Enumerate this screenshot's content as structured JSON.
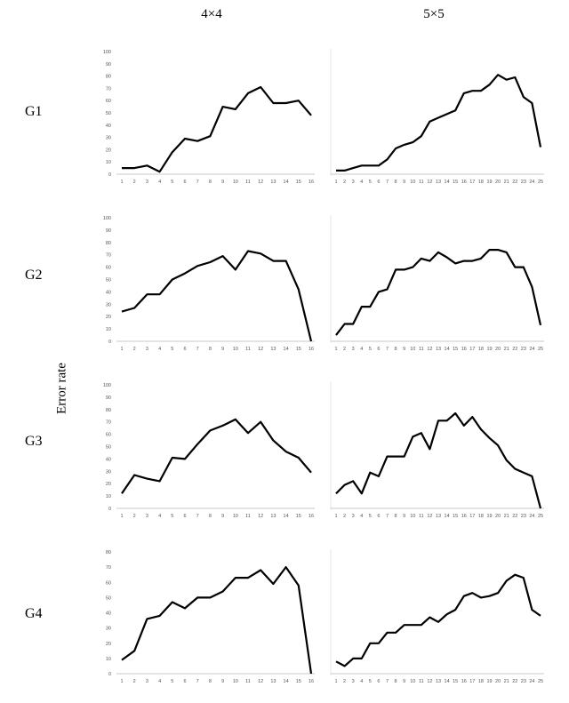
{
  "column_headers": [
    "4×4",
    "5×5"
  ],
  "row_labels": [
    "G1",
    "G2",
    "G3",
    "G4"
  ],
  "y_axis_title": "Error rate",
  "chart_data": [
    {
      "type": "line",
      "row": "G1",
      "column": "4×4",
      "ylim": [
        0,
        100
      ],
      "yticks": [
        0,
        10,
        20,
        30,
        40,
        50,
        60,
        70,
        80,
        90,
        100
      ],
      "x": [
        1,
        2,
        3,
        4,
        5,
        6,
        7,
        8,
        9,
        10,
        11,
        12,
        13,
        14,
        15,
        16
      ],
      "values": [
        5,
        5,
        7,
        2,
        18,
        29,
        27,
        31,
        55,
        53,
        66,
        71,
        58,
        58,
        60,
        48
      ]
    },
    {
      "type": "line",
      "row": "G1",
      "column": "5×5",
      "ylim": [
        0,
        100
      ],
      "yticks": [],
      "x": [
        1,
        2,
        3,
        4,
        5,
        6,
        7,
        8,
        9,
        10,
        11,
        12,
        13,
        14,
        15,
        16,
        17,
        18,
        19,
        20,
        21,
        22,
        23,
        24,
        25
      ],
      "values": [
        3,
        3,
        5,
        7,
        7,
        7,
        12,
        21,
        24,
        26,
        31,
        43,
        46,
        49,
        52,
        66,
        68,
        68,
        73,
        81,
        77,
        79,
        63,
        58,
        22
      ]
    },
    {
      "type": "line",
      "row": "G2",
      "column": "4×4",
      "ylim": [
        0,
        100
      ],
      "yticks": [
        0,
        10,
        20,
        30,
        40,
        50,
        60,
        70,
        80,
        90,
        100
      ],
      "x": [
        1,
        2,
        3,
        4,
        5,
        6,
        7,
        8,
        9,
        10,
        11,
        12,
        13,
        14,
        15,
        16
      ],
      "values": [
        24,
        27,
        38,
        38,
        50,
        55,
        61,
        64,
        69,
        58,
        73,
        71,
        65,
        65,
        42,
        0
      ]
    },
    {
      "type": "line",
      "row": "G2",
      "column": "5×5",
      "ylim": [
        0,
        100
      ],
      "yticks": [],
      "x": [
        1,
        2,
        3,
        4,
        5,
        6,
        7,
        8,
        9,
        10,
        11,
        12,
        13,
        14,
        15,
        16,
        17,
        18,
        19,
        20,
        21,
        22,
        23,
        24,
        25
      ],
      "values": [
        5,
        14,
        14,
        28,
        28,
        40,
        42,
        58,
        58,
        60,
        67,
        65,
        72,
        68,
        63,
        65,
        65,
        67,
        74,
        74,
        72,
        60,
        60,
        44,
        13
      ]
    },
    {
      "type": "line",
      "row": "G3",
      "column": "4×4",
      "ylim": [
        0,
        100
      ],
      "yticks": [
        0,
        10,
        20,
        30,
        40,
        50,
        60,
        70,
        80,
        90,
        100
      ],
      "x": [
        1,
        2,
        3,
        4,
        5,
        6,
        7,
        8,
        9,
        10,
        11,
        12,
        13,
        14,
        15,
        16
      ],
      "values": [
        12,
        27,
        24,
        22,
        41,
        40,
        52,
        63,
        67,
        72,
        61,
        70,
        55,
        46,
        41,
        29
      ]
    },
    {
      "type": "line",
      "row": "G3",
      "column": "5×5",
      "ylim": [
        0,
        100
      ],
      "yticks": [],
      "x": [
        1,
        2,
        3,
        4,
        5,
        6,
        7,
        8,
        9,
        10,
        11,
        12,
        13,
        14,
        15,
        16,
        17,
        18,
        19,
        20,
        21,
        22,
        23,
        24,
        25
      ],
      "values": [
        12,
        19,
        22,
        12,
        29,
        26,
        42,
        42,
        42,
        58,
        61,
        48,
        71,
        71,
        77,
        67,
        74,
        64,
        57,
        51,
        39,
        32,
        29,
        26,
        0
      ]
    },
    {
      "type": "line",
      "row": "G4",
      "column": "4×4",
      "ylim": [
        0,
        80
      ],
      "yticks": [
        0,
        10,
        20,
        30,
        40,
        50,
        60,
        70,
        80
      ],
      "x": [
        1,
        2,
        3,
        4,
        5,
        6,
        7,
        8,
        9,
        10,
        11,
        12,
        13,
        14,
        15,
        16
      ],
      "values": [
        9,
        15,
        36,
        38,
        47,
        43,
        50,
        50,
        54,
        63,
        63,
        68,
        59,
        70,
        58,
        0
      ]
    },
    {
      "type": "line",
      "row": "G4",
      "column": "5×5",
      "ylim": [
        0,
        80
      ],
      "yticks": [],
      "x": [
        1,
        2,
        3,
        4,
        5,
        6,
        7,
        8,
        9,
        10,
        11,
        12,
        13,
        14,
        15,
        16,
        17,
        18,
        19,
        20,
        21,
        22,
        23,
        24,
        25
      ],
      "values": [
        8,
        5,
        10,
        10,
        20,
        20,
        27,
        27,
        32,
        32,
        32,
        37,
        34,
        39,
        42,
        51,
        53,
        50,
        51,
        53,
        61,
        65,
        63,
        42,
        38
      ]
    }
  ]
}
